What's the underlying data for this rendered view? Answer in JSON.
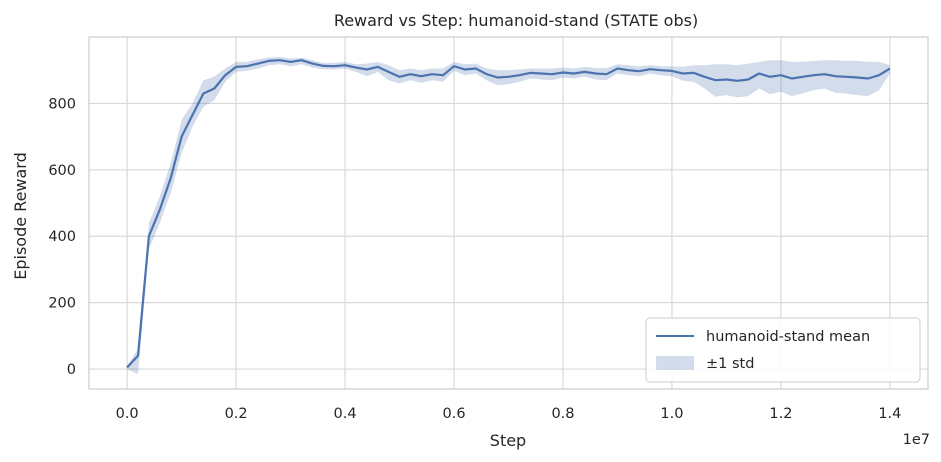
{
  "chart_data": {
    "type": "line",
    "title": "Reward vs Step: humanoid-stand (STATE obs)",
    "xlabel": "Step",
    "ylabel": "Episode Reward",
    "x_offset_label": "1e7",
    "xlim": [
      -0.07,
      1.47
    ],
    "ylim": [
      -60,
      1000
    ],
    "x_ticks": [
      0.0,
      0.2,
      0.4,
      0.6,
      0.8,
      1.0,
      1.2,
      1.4
    ],
    "x_tick_labels": [
      "0.0",
      "0.2",
      "0.4",
      "0.6",
      "0.8",
      "1.0",
      "1.2",
      "1.4"
    ],
    "y_ticks": [
      0,
      200,
      400,
      600,
      800
    ],
    "y_tick_labels": [
      "0",
      "200",
      "400",
      "600",
      "800"
    ],
    "grid": true,
    "legend_position": "bottom-right",
    "colors": {
      "line": "#4c72b0",
      "band": "#4c72b0",
      "grid": "#d9d9d9",
      "spine": "#cccccc"
    },
    "series": [
      {
        "name": "humanoid-stand mean",
        "std_label": "±1 std",
        "x": [
          0.0,
          0.02,
          0.04,
          0.06,
          0.08,
          0.1,
          0.12,
          0.14,
          0.16,
          0.18,
          0.2,
          0.22,
          0.24,
          0.26,
          0.28,
          0.3,
          0.32,
          0.34,
          0.36,
          0.38,
          0.4,
          0.42,
          0.44,
          0.46,
          0.48,
          0.5,
          0.52,
          0.54,
          0.56,
          0.58,
          0.6,
          0.62,
          0.64,
          0.66,
          0.68,
          0.7,
          0.72,
          0.74,
          0.76,
          0.78,
          0.8,
          0.82,
          0.84,
          0.86,
          0.88,
          0.9,
          0.92,
          0.94,
          0.96,
          0.98,
          1.0,
          1.02,
          1.04,
          1.06,
          1.08,
          1.1,
          1.12,
          1.14,
          1.16,
          1.18,
          1.2,
          1.22,
          1.24,
          1.26,
          1.28,
          1.3,
          1.32,
          1.34,
          1.36,
          1.38,
          1.4
        ],
        "mean": [
          5,
          40,
          400,
          480,
          575,
          700,
          765,
          830,
          845,
          885,
          910,
          912,
          920,
          928,
          930,
          925,
          930,
          920,
          913,
          912,
          915,
          908,
          902,
          910,
          895,
          880,
          888,
          882,
          888,
          885,
          912,
          902,
          905,
          888,
          878,
          880,
          885,
          892,
          890,
          888,
          893,
          890,
          895,
          890,
          888,
          905,
          900,
          897,
          903,
          900,
          898,
          890,
          892,
          880,
          870,
          872,
          868,
          872,
          890,
          880,
          885,
          875,
          880,
          885,
          888,
          882,
          880,
          878,
          875,
          885,
          905
        ],
        "upper": [
          10,
          60,
          440,
          520,
          620,
          750,
          800,
          870,
          880,
          905,
          925,
          925,
          933,
          938,
          940,
          935,
          938,
          930,
          922,
          922,
          925,
          918,
          920,
          925,
          915,
          900,
          905,
          900,
          905,
          905,
          925,
          918,
          920,
          905,
          900,
          900,
          902,
          905,
          905,
          905,
          908,
          905,
          910,
          907,
          906,
          918,
          915,
          912,
          915,
          912,
          912,
          910,
          915,
          915,
          918,
          918,
          915,
          920,
          925,
          930,
          930,
          925,
          925,
          928,
          930,
          930,
          928,
          928,
          925,
          925,
          915
        ],
        "lower": [
          0,
          -15,
          360,
          440,
          530,
          650,
          730,
          790,
          810,
          865,
          895,
          898,
          905,
          915,
          918,
          912,
          918,
          908,
          903,
          902,
          905,
          895,
          882,
          895,
          870,
          860,
          870,
          862,
          870,
          865,
          898,
          885,
          890,
          870,
          855,
          858,
          865,
          875,
          872,
          870,
          878,
          875,
          880,
          872,
          870,
          890,
          885,
          882,
          890,
          885,
          882,
          868,
          865,
          845,
          820,
          825,
          818,
          822,
          845,
          828,
          835,
          822,
          830,
          840,
          845,
          832,
          830,
          825,
          822,
          840,
          890
        ]
      }
    ]
  }
}
